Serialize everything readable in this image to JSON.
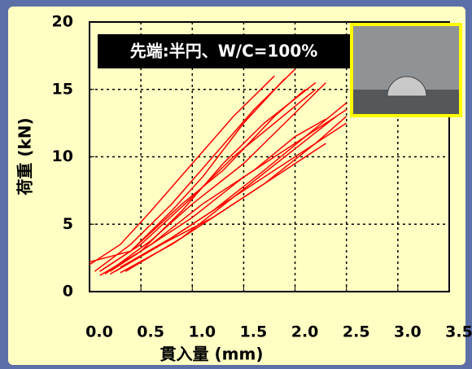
{
  "chart_data": {
    "type": "line",
    "annotation": "先端:半円、W/C=100%",
    "xlabel": "貫入量 (mm)",
    "ylabel": "荷重 (kN)",
    "xlim": [
      0,
      3.5
    ],
    "ylim": [
      0,
      20
    ],
    "xticks": [
      {
        "value": 0,
        "label": "0.0"
      },
      0.5,
      {
        "value": 1,
        "label": "1.0"
      },
      1.5,
      {
        "value": 2,
        "label": "2.0"
      },
      2.5,
      {
        "value": 3,
        "label": "3.0"
      },
      3.5
    ],
    "yticks": [
      0,
      5,
      10,
      15,
      20
    ],
    "grid": true,
    "series": [
      {
        "color": "#ff0000",
        "x": [
          0,
          0.3,
          0.6,
          1.0,
          1.4,
          1.8
        ],
        "values": [
          2,
          3.5,
          6,
          9.5,
          13,
          16
        ]
      },
      {
        "color": "#ff0000",
        "x": [
          0.05,
          0.4,
          0.8,
          1.2,
          1.6,
          2.0
        ],
        "values": [
          1.5,
          3.5,
          6.5,
          10,
          13.5,
          16.5
        ]
      },
      {
        "color": "#ff0000",
        "x": [
          0.1,
          0.5,
          0.9,
          1.3,
          1.7,
          2.2
        ],
        "values": [
          1.2,
          3,
          6,
          9.5,
          12.5,
          15.5
        ]
      },
      {
        "color": "#ff0000",
        "x": [
          0.1,
          0.5,
          1.0,
          1.4,
          1.8,
          2.2
        ],
        "values": [
          1.5,
          3.5,
          7,
          10,
          12.5,
          15
        ]
      },
      {
        "color": "#ff0000",
        "x": [
          0.15,
          0.6,
          1.0,
          1.5,
          1.9,
          2.3
        ],
        "values": [
          1.3,
          3.8,
          6.5,
          9.5,
          12.5,
          15.5
        ]
      },
      {
        "color": "#ff0000",
        "x": [
          0.2,
          0.6,
          1.0,
          1.5,
          2.0,
          2.5
        ],
        "values": [
          1.5,
          3.5,
          5.5,
          8.5,
          11,
          13.5
        ]
      },
      {
        "color": "#ff0000",
        "x": [
          0.2,
          0.7,
          1.2,
          1.7,
          2.1,
          2.5
        ],
        "values": [
          1.3,
          3.5,
          6,
          9,
          11.5,
          14
        ]
      },
      {
        "color": "#ff0000",
        "x": [
          0.25,
          0.7,
          1.2,
          1.7,
          2.2,
          2.5
        ],
        "values": [
          1.5,
          3.5,
          5.5,
          8,
          11,
          13
        ]
      },
      {
        "color": "#ff0000",
        "x": [
          0.3,
          0.8,
          1.3,
          1.8,
          2.3
        ],
        "values": [
          1.4,
          3.5,
          6,
          8.5,
          11
        ]
      },
      {
        "color": "#ff0000",
        "x": [
          0.3,
          0.8,
          1.3,
          1.8,
          2.3,
          2.5
        ],
        "values": [
          1.8,
          4,
          6.5,
          9,
          11.5,
          12.5
        ]
      },
      {
        "color": "#ff0000",
        "x": [
          0.35,
          0.9,
          1.4,
          1.9,
          2.4
        ],
        "values": [
          1.5,
          4,
          7,
          10,
          13
        ]
      },
      {
        "color": "#ff0000",
        "x": [
          0,
          0.4,
          0.9,
          1.3,
          1.8,
          2.1
        ],
        "values": [
          2.2,
          3,
          6.5,
          9,
          13,
          15
        ]
      },
      {
        "color": "#ff0000",
        "x": [
          0.1,
          0.4,
          0.8,
          1.1,
          1.5,
          1.9
        ],
        "values": [
          1.5,
          3,
          6,
          8.5,
          12.5,
          15.8
        ]
      },
      {
        "color": "#ff0000",
        "x": [
          0.2,
          0.6,
          1.1,
          1.6,
          2.0,
          2.3
        ],
        "values": [
          1.5,
          3.5,
          6.5,
          9,
          11.5,
          12.8
        ]
      }
    ]
  }
}
